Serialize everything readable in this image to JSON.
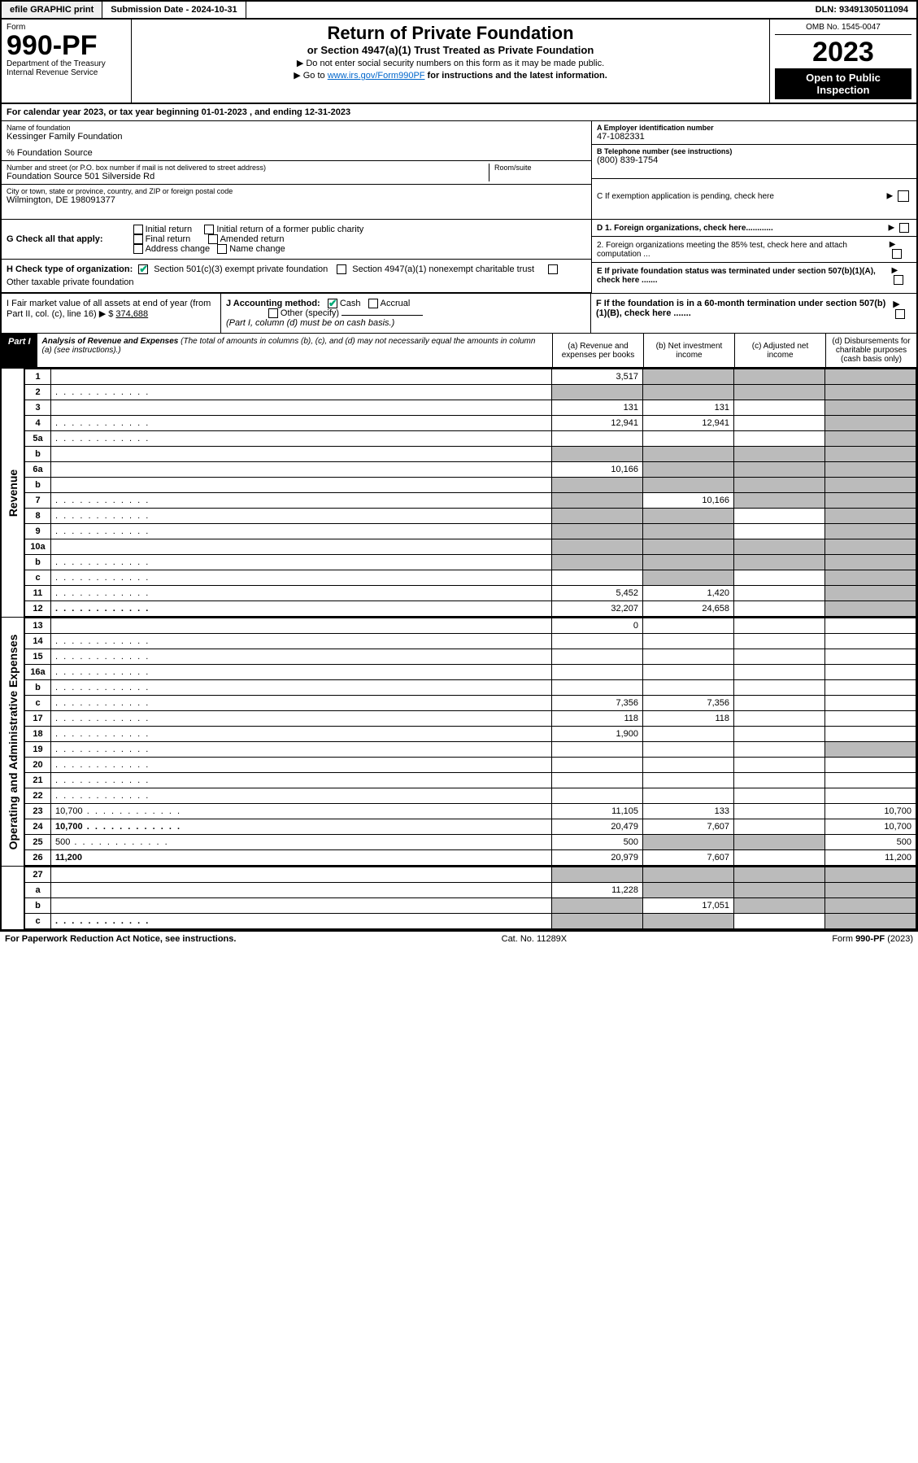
{
  "top": {
    "efile": "efile GRAPHIC print",
    "subdate_lbl": "Submission Date - ",
    "subdate": "2024-10-31",
    "dln_lbl": "DLN: ",
    "dln": "93491305011094"
  },
  "head": {
    "form_lbl": "Form",
    "formno": "990-PF",
    "dept": "Department of the Treasury",
    "irs": "Internal Revenue Service",
    "title": "Return of Private Foundation",
    "subtitle": "or Section 4947(a)(1) Trust Treated as Private Foundation",
    "instr1": "▶ Do not enter social security numbers on this form as it may be made public.",
    "instr2_pre": "▶ Go to ",
    "instr2_link": "www.irs.gov/Form990PF",
    "instr2_post": " for instructions and the latest information.",
    "omb": "OMB No. 1545-0047",
    "year": "2023",
    "open": "Open to Public Inspection"
  },
  "cal": "For calendar year 2023, or tax year beginning 01-01-2023              , and ending 12-31-2023",
  "ident": {
    "name_lbl": "Name of foundation",
    "name": "Kessinger Family Foundation",
    "care": "% Foundation Source",
    "addr_lbl": "Number and street (or P.O. box number if mail is not delivered to street address)",
    "addr": "Foundation Source 501 Silverside Rd",
    "room_lbl": "Room/suite",
    "city_lbl": "City or town, state or province, country, and ZIP or foreign postal code",
    "city": "Wilmington, DE  198091377",
    "ein_lbl": "A Employer identification number",
    "ein": "47-1082331",
    "phone_lbl": "B Telephone number (see instructions)",
    "phone": "(800) 839-1754",
    "c_lbl": "C If exemption application is pending, check here"
  },
  "g": {
    "lbl": "G Check all that apply:",
    "o1": "Initial return",
    "o2": "Final return",
    "o3": "Address change",
    "o4": "Initial return of a former public charity",
    "o5": "Amended return",
    "o6": "Name change"
  },
  "h": {
    "lbl": "H Check type of organization:",
    "o1": "Section 501(c)(3) exempt private foundation",
    "o2": "Section 4947(a)(1) nonexempt charitable trust",
    "o3": "Other taxable private foundation"
  },
  "d": {
    "d1": "D 1. Foreign organizations, check here............",
    "d2": "2. Foreign organizations meeting the 85% test, check here and attach computation ...",
    "e": "E  If private foundation status was terminated under section 507(b)(1)(A), check here .......",
    "f": "F  If the foundation is in a 60-month termination under section 507(b)(1)(B), check here ......."
  },
  "i": {
    "lbl": "I Fair market value of all assets at end of year (from Part II, col. (c), line 16) ▶ $",
    "val": "374,688"
  },
  "j": {
    "lbl": "J Accounting method:",
    "cash": "Cash",
    "accrual": "Accrual",
    "other": "Other (specify)",
    "note": "(Part I, column (d) must be on cash basis.)"
  },
  "part1": {
    "tag": "Part I",
    "hd": "Analysis of Revenue and Expenses",
    "sub": " (The total of amounts in columns (b), (c), and (d) may not necessarily equal the amounts in column (a) (see instructions).)",
    "ca": "(a)   Revenue and expenses per books",
    "cb": "(b)   Net investment income",
    "cc": "(c)   Adjusted net income",
    "cd": "(d)   Disbursements for charitable purposes (cash basis only)"
  },
  "sideRev": "Revenue",
  "sideOpe": "Operating and Administrative Expenses",
  "lines": [
    {
      "n": "1",
      "d": "",
      "a": "3,517",
      "b": "",
      "c": "",
      "sb": true,
      "sc": true,
      "sd": true
    },
    {
      "n": "2",
      "d": "",
      "dots": true,
      "a": "",
      "b": "",
      "c": "",
      "sa": true,
      "sb": true,
      "sc": true,
      "sd": true
    },
    {
      "n": "3",
      "d": "",
      "a": "131",
      "b": "131",
      "c": "",
      "sd": true
    },
    {
      "n": "4",
      "d": "",
      "dots": true,
      "a": "12,941",
      "b": "12,941",
      "c": "",
      "sd": true
    },
    {
      "n": "5a",
      "d": "",
      "dots": true,
      "a": "",
      "b": "",
      "c": "",
      "sd": true
    },
    {
      "n": "b",
      "d": "",
      "a": "",
      "b": "",
      "c": "",
      "sa": true,
      "sb": true,
      "sc": true,
      "sd": true
    },
    {
      "n": "6a",
      "d": "",
      "a": "10,166",
      "b": "",
      "c": "",
      "sb": true,
      "sc": true,
      "sd": true
    },
    {
      "n": "b",
      "d": "",
      "a": "",
      "b": "",
      "c": "",
      "sa": true,
      "sb": true,
      "sc": true,
      "sd": true
    },
    {
      "n": "7",
      "d": "",
      "dots": true,
      "a": "",
      "b": "10,166",
      "c": "",
      "sa": true,
      "sc": true,
      "sd": true
    },
    {
      "n": "8",
      "d": "",
      "dots": true,
      "a": "",
      "b": "",
      "c": "",
      "sa": true,
      "sb": true,
      "sd": true
    },
    {
      "n": "9",
      "d": "",
      "dots": true,
      "a": "",
      "b": "",
      "c": "",
      "sa": true,
      "sb": true,
      "sd": true
    },
    {
      "n": "10a",
      "d": "",
      "a": "",
      "b": "",
      "c": "",
      "sa": true,
      "sb": true,
      "sc": true,
      "sd": true
    },
    {
      "n": "b",
      "d": "",
      "dots": true,
      "a": "",
      "b": "",
      "c": "",
      "sa": true,
      "sb": true,
      "sc": true,
      "sd": true
    },
    {
      "n": "c",
      "d": "",
      "dots": true,
      "a": "",
      "b": "",
      "c": "",
      "sb": true,
      "sd": true
    },
    {
      "n": "11",
      "d": "",
      "dots": true,
      "a": "5,452",
      "b": "1,420",
      "c": "",
      "sd": true
    },
    {
      "n": "12",
      "d": "",
      "dots": true,
      "a": "32,207",
      "b": "24,658",
      "c": "",
      "sd": true,
      "bold": true
    }
  ],
  "oplines": [
    {
      "n": "13",
      "d": "",
      "a": "0",
      "b": "",
      "c": ""
    },
    {
      "n": "14",
      "d": "",
      "dots": true,
      "a": "",
      "b": "",
      "c": ""
    },
    {
      "n": "15",
      "d": "",
      "dots": true,
      "a": "",
      "b": "",
      "c": ""
    },
    {
      "n": "16a",
      "d": "",
      "dots": true,
      "a": "",
      "b": "",
      "c": ""
    },
    {
      "n": "b",
      "d": "",
      "dots": true,
      "a": "",
      "b": "",
      "c": ""
    },
    {
      "n": "c",
      "d": "",
      "dots": true,
      "a": "7,356",
      "b": "7,356",
      "c": ""
    },
    {
      "n": "17",
      "d": "",
      "dots": true,
      "a": "118",
      "b": "118",
      "c": ""
    },
    {
      "n": "18",
      "d": "",
      "dots": true,
      "a": "1,900",
      "b": "",
      "c": ""
    },
    {
      "n": "19",
      "d": "",
      "dots": true,
      "a": "",
      "b": "",
      "c": "",
      "sd": true
    },
    {
      "n": "20",
      "d": "",
      "dots": true,
      "a": "",
      "b": "",
      "c": ""
    },
    {
      "n": "21",
      "d": "",
      "dots": true,
      "a": "",
      "b": "",
      "c": ""
    },
    {
      "n": "22",
      "d": "",
      "dots": true,
      "a": "",
      "b": "",
      "c": ""
    },
    {
      "n": "23",
      "d": "10,700",
      "dots": true,
      "a": "11,105",
      "b": "133",
      "c": ""
    },
    {
      "n": "24",
      "d": "10,700",
      "dots": true,
      "a": "20,479",
      "b": "7,607",
      "c": "",
      "bold": true
    },
    {
      "n": "25",
      "d": "500",
      "dots": true,
      "a": "500",
      "b": "",
      "c": "",
      "sb": true,
      "sc": true
    },
    {
      "n": "26",
      "d": "11,200",
      "a": "20,979",
      "b": "7,607",
      "c": "",
      "bold": true
    }
  ],
  "botlines": [
    {
      "n": "27",
      "d": "",
      "a": "",
      "b": "",
      "c": "",
      "sa": true,
      "sb": true,
      "sc": true,
      "sd": true
    },
    {
      "n": "a",
      "d": "",
      "a": "11,228",
      "b": "",
      "c": "",
      "sb": true,
      "sc": true,
      "sd": true,
      "bold": true
    },
    {
      "n": "b",
      "d": "",
      "a": "",
      "b": "17,051",
      "c": "",
      "sa": true,
      "sc": true,
      "sd": true,
      "bold": true
    },
    {
      "n": "c",
      "d": "",
      "dots": true,
      "a": "",
      "b": "",
      "c": "",
      "sa": true,
      "sb": true,
      "sd": true,
      "bold": true
    }
  ],
  "footer": {
    "left": "For Paperwork Reduction Act Notice, see instructions.",
    "mid": "Cat. No. 11289X",
    "right": "Form 990-PF (2023)"
  }
}
